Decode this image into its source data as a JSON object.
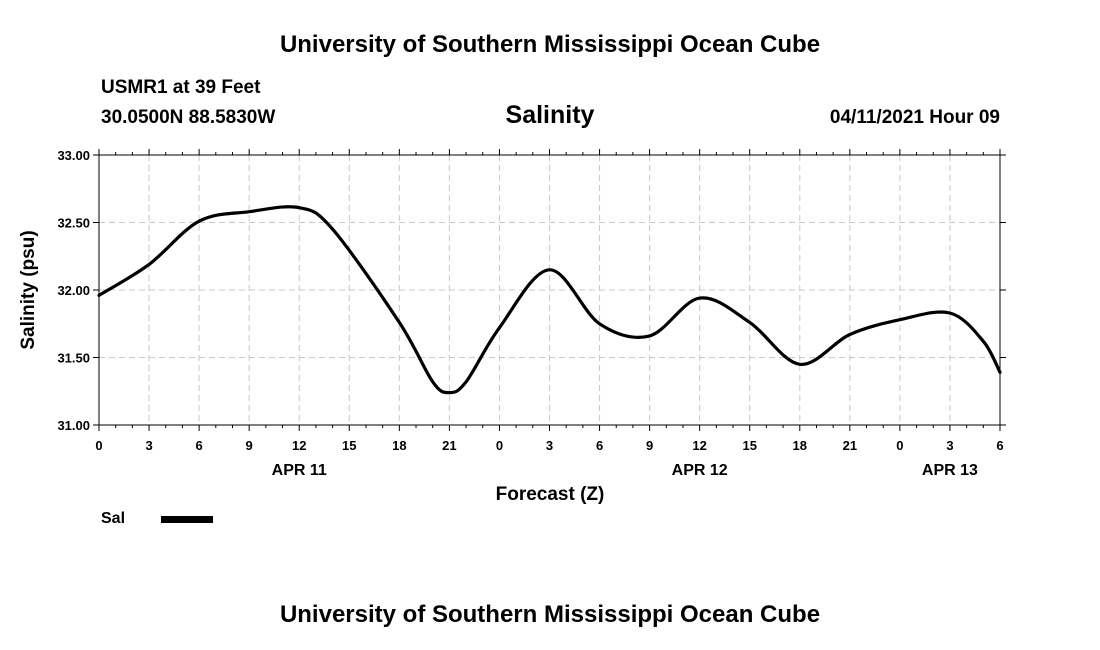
{
  "header": {
    "title": "University of Southern Mississippi Ocean Cube",
    "station": "USMR1 at 39 Feet",
    "coordinates": "30.0500N  88.5830W",
    "forecast_time": "04/11/2021 Hour 09"
  },
  "footer": {
    "title": "University of Southern Mississippi Ocean Cube"
  },
  "legend": {
    "label": "Sal",
    "color": "#000000"
  },
  "chart_data": {
    "type": "line",
    "title": "Salinity",
    "xlabel": "Forecast (Z)",
    "ylabel": "Salinity (psu)",
    "ylim": [
      31.0,
      33.0
    ],
    "yticks": [
      "31.00",
      "31.50",
      "32.00",
      "32.50",
      "33.00"
    ],
    "xlim": [
      0,
      54
    ],
    "xtick_labels": [
      "0",
      "3",
      "6",
      "9",
      "12",
      "15",
      "18",
      "21",
      "0",
      "3",
      "6",
      "9",
      "12",
      "15",
      "18",
      "21",
      "0",
      "3",
      "6"
    ],
    "date_labels": [
      {
        "label": "APR 11",
        "at": 12
      },
      {
        "label": "APR 12",
        "at": 36
      },
      {
        "label": "APR 13",
        "at": 51
      }
    ],
    "grid": true,
    "series": [
      {
        "name": "Sal",
        "color": "#000000",
        "x": [
          0,
          3,
          6,
          9,
          12,
          14,
          18,
          20,
          21,
          22,
          24,
          27,
          30,
          33,
          36,
          39,
          42,
          45,
          48,
          51,
          53,
          54
        ],
        "y": [
          31.96,
          32.19,
          32.51,
          32.58,
          32.61,
          32.45,
          31.76,
          31.32,
          31.24,
          31.32,
          31.72,
          32.15,
          31.75,
          31.66,
          31.94,
          31.76,
          31.45,
          31.67,
          31.78,
          31.83,
          31.62,
          31.39
        ]
      }
    ]
  }
}
